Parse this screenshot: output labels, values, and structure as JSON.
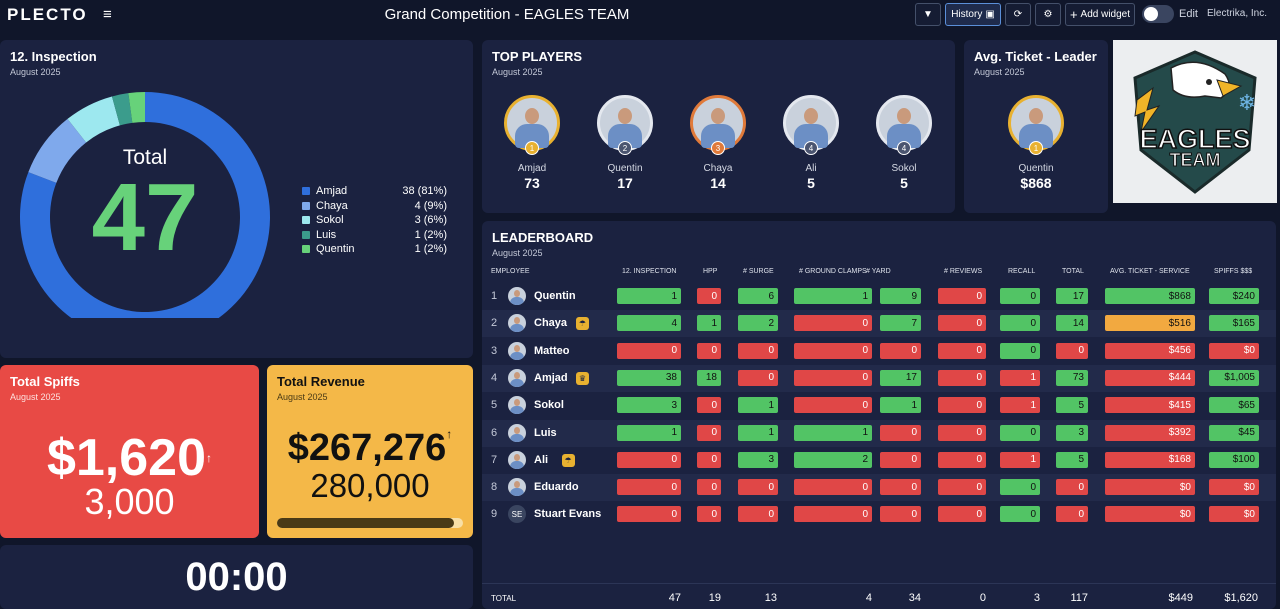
{
  "topbar": {
    "logo": "PLECTO",
    "title": "Grand Competition - EAGLES TEAM",
    "history_label": "History",
    "add_widget_label": "Add widget",
    "edit_label": "Edit",
    "company": "Electrika, Inc."
  },
  "inspection": {
    "title": "12. Inspection",
    "subtitle": "August 2025",
    "center_label": "Total",
    "center_value": "47",
    "chart_data": {
      "type": "pie",
      "categories": [
        "Amjad",
        "Chaya",
        "Sokol",
        "Luis",
        "Quentin"
      ],
      "values": [
        38,
        4,
        3,
        1,
        1
      ],
      "colors": [
        "#2f6fdc",
        "#7fa9ec",
        "#9de8ef",
        "#3b9c8c",
        "#67d27a"
      ]
    },
    "legend": [
      {
        "name": "Amjad",
        "value": "38 (81%)",
        "color": "#2f6fdc"
      },
      {
        "name": "Chaya",
        "value": "4 (9%)",
        "color": "#7fa9ec"
      },
      {
        "name": "Sokol",
        "value": "3 (6%)",
        "color": "#9de8ef"
      },
      {
        "name": "Luis",
        "value": "1 (2%)",
        "color": "#3b9c8c"
      },
      {
        "name": "Quentin",
        "value": "1 (2%)",
        "color": "#67d27a"
      }
    ]
  },
  "top_players": {
    "title": "TOP PLAYERS",
    "subtitle": "August 2025",
    "players": [
      {
        "name": "Amjad",
        "value": "73",
        "rank": "1",
        "ring": "#e8b130"
      },
      {
        "name": "Quentin",
        "value": "17",
        "rank": "2",
        "ring": "#e4e8ef"
      },
      {
        "name": "Chaya",
        "value": "14",
        "rank": "3",
        "ring": "#e07a3a"
      },
      {
        "name": "Ali",
        "value": "5",
        "rank": "4",
        "ring": "#e4e8ef"
      },
      {
        "name": "Sokol",
        "value": "5",
        "rank": "4",
        "ring": "#e4e8ef"
      }
    ]
  },
  "avg_ticket": {
    "title": "Avg. Ticket - Leader",
    "subtitle": "August 2025",
    "name": "Quentin",
    "value": "$868",
    "rank": "1"
  },
  "team_logo": {
    "line1": "EAGLES",
    "line2": "TEAM"
  },
  "spiffs": {
    "title": "Total Spiffs",
    "subtitle": "August 2025",
    "value": "$1,620",
    "target": "3,000",
    "arrow": "↑",
    "color": "#e84a45"
  },
  "revenue": {
    "title": "Total Revenue",
    "subtitle": "August 2025",
    "value": "$267,276",
    "target": "280,000",
    "arrow": "↑",
    "progress": 0.95,
    "color": "#f4b848"
  },
  "timer": {
    "value": "00:00"
  },
  "leaderboard": {
    "title": "LEADERBOARD",
    "subtitle": "August 2025",
    "columns": [
      "EMPLOYEE",
      "12. INSPECTION",
      "HPP",
      "# SURGE",
      "# GROUND CLAMPS",
      "# YARD",
      "# REVIEWS",
      "RECALL",
      "TOTAL",
      "AVG. TICKET - SERVICE",
      "SPIFFS $$$"
    ],
    "rows": [
      {
        "idx": "1",
        "name": "Quentin",
        "badge": "",
        "cells": [
          [
            "1",
            "g"
          ],
          [
            "0",
            "r"
          ],
          [
            "6",
            "g"
          ],
          [
            "1",
            "g"
          ],
          [
            "9",
            "g"
          ],
          [
            "0",
            "r"
          ],
          [
            "0",
            "g"
          ],
          [
            "17",
            "g"
          ],
          [
            "$868",
            "g"
          ],
          [
            "$240",
            "g"
          ]
        ]
      },
      {
        "idx": "2",
        "name": "Chaya",
        "badge": "☂",
        "cells": [
          [
            "4",
            "g"
          ],
          [
            "1",
            "g"
          ],
          [
            "2",
            "g"
          ],
          [
            "0",
            "r"
          ],
          [
            "7",
            "g"
          ],
          [
            "0",
            "r"
          ],
          [
            "0",
            "g"
          ],
          [
            "14",
            "g"
          ],
          [
            "$516",
            "o"
          ],
          [
            "$165",
            "g"
          ]
        ]
      },
      {
        "idx": "3",
        "name": "Matteo",
        "badge": "",
        "cells": [
          [
            "0",
            "r"
          ],
          [
            "0",
            "r"
          ],
          [
            "0",
            "r"
          ],
          [
            "0",
            "r"
          ],
          [
            "0",
            "r"
          ],
          [
            "0",
            "r"
          ],
          [
            "0",
            "g"
          ],
          [
            "0",
            "r"
          ],
          [
            "$456",
            "r"
          ],
          [
            "$0",
            "r"
          ]
        ]
      },
      {
        "idx": "4",
        "name": "Amjad",
        "badge": "♛",
        "cells": [
          [
            "38",
            "g"
          ],
          [
            "18",
            "g"
          ],
          [
            "0",
            "r"
          ],
          [
            "0",
            "r"
          ],
          [
            "17",
            "g"
          ],
          [
            "0",
            "r"
          ],
          [
            "1",
            "r"
          ],
          [
            "73",
            "g"
          ],
          [
            "$444",
            "r"
          ],
          [
            "$1,005",
            "g"
          ]
        ]
      },
      {
        "idx": "5",
        "name": "Sokol",
        "badge": "",
        "cells": [
          [
            "3",
            "g"
          ],
          [
            "0",
            "r"
          ],
          [
            "1",
            "g"
          ],
          [
            "0",
            "r"
          ],
          [
            "1",
            "g"
          ],
          [
            "0",
            "r"
          ],
          [
            "1",
            "r"
          ],
          [
            "5",
            "g"
          ],
          [
            "$415",
            "r"
          ],
          [
            "$65",
            "g"
          ]
        ]
      },
      {
        "idx": "6",
        "name": "Luis",
        "badge": "",
        "cells": [
          [
            "1",
            "g"
          ],
          [
            "0",
            "r"
          ],
          [
            "1",
            "g"
          ],
          [
            "1",
            "g"
          ],
          [
            "0",
            "r"
          ],
          [
            "0",
            "r"
          ],
          [
            "0",
            "g"
          ],
          [
            "3",
            "g"
          ],
          [
            "$392",
            "r"
          ],
          [
            "$45",
            "g"
          ]
        ]
      },
      {
        "idx": "7",
        "name": "Ali",
        "badge": "☂",
        "cells": [
          [
            "0",
            "r"
          ],
          [
            "0",
            "r"
          ],
          [
            "3",
            "g"
          ],
          [
            "2",
            "g"
          ],
          [
            "0",
            "r"
          ],
          [
            "0",
            "r"
          ],
          [
            "1",
            "r"
          ],
          [
            "5",
            "g"
          ],
          [
            "$168",
            "r"
          ],
          [
            "$100",
            "g"
          ]
        ]
      },
      {
        "idx": "8",
        "name": "Eduardo",
        "badge": "",
        "cells": [
          [
            "0",
            "r"
          ],
          [
            "0",
            "r"
          ],
          [
            "0",
            "r"
          ],
          [
            "0",
            "r"
          ],
          [
            "0",
            "r"
          ],
          [
            "0",
            "r"
          ],
          [
            "0",
            "g"
          ],
          [
            "0",
            "r"
          ],
          [
            "$0",
            "r"
          ],
          [
            "$0",
            "r"
          ]
        ]
      },
      {
        "idx": "9",
        "name": "Stuart Evans",
        "badge": "",
        "initials": "SE",
        "cells": [
          [
            "0",
            "r"
          ],
          [
            "0",
            "r"
          ],
          [
            "0",
            "r"
          ],
          [
            "0",
            "r"
          ],
          [
            "0",
            "r"
          ],
          [
            "0",
            "r"
          ],
          [
            "0",
            "g"
          ],
          [
            "0",
            "r"
          ],
          [
            "$0",
            "r"
          ],
          [
            "$0",
            "r"
          ]
        ]
      }
    ],
    "total_label": "TOTAL",
    "totals": [
      "47",
      "19",
      "13",
      "4",
      "34",
      "0",
      "3",
      "117",
      "$449",
      "$1,620"
    ]
  }
}
